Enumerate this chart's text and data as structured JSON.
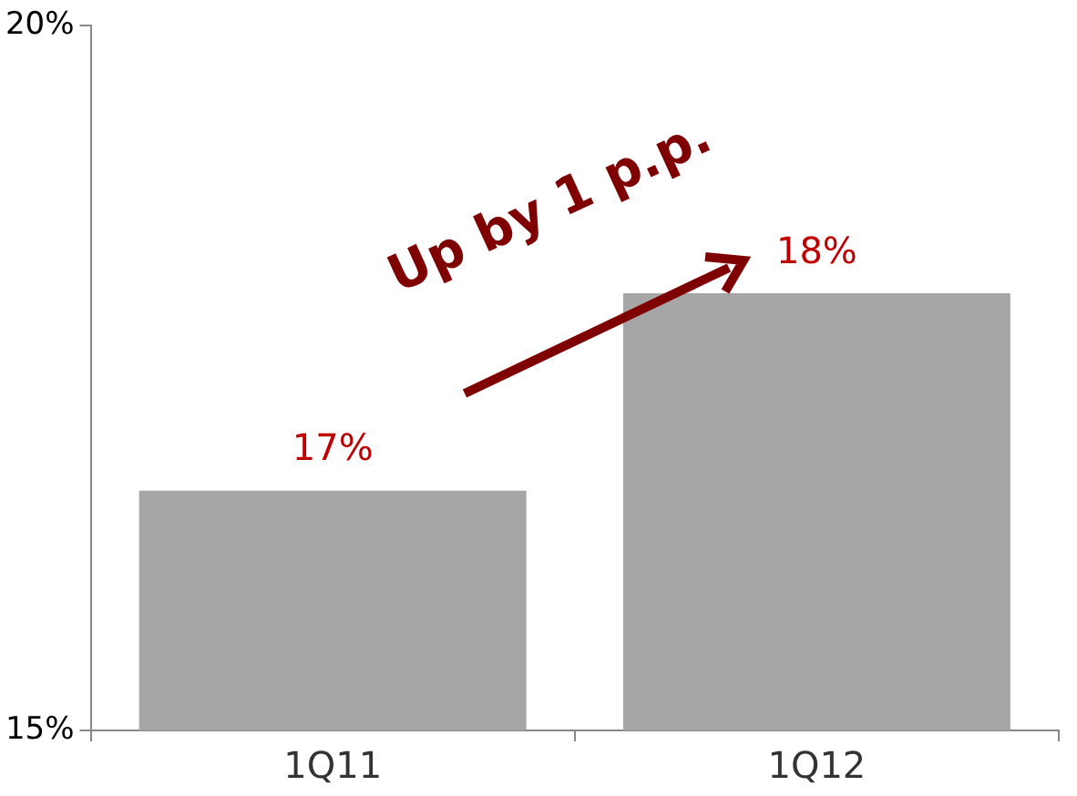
{
  "chart_data": {
    "type": "bar",
    "categories": [
      "1Q11",
      "1Q12"
    ],
    "values": [
      16.7,
      18.1
    ],
    "value_labels": [
      "17%",
      "18%"
    ],
    "color": "#a6a6a6",
    "ylim": [
      15,
      20
    ],
    "yticks": [
      {
        "value": 15,
        "label": "15%"
      },
      {
        "value": 20,
        "label": "20%"
      }
    ],
    "grid": false,
    "legend": false,
    "annotations": [
      "Up by 1 p.p."
    ]
  }
}
